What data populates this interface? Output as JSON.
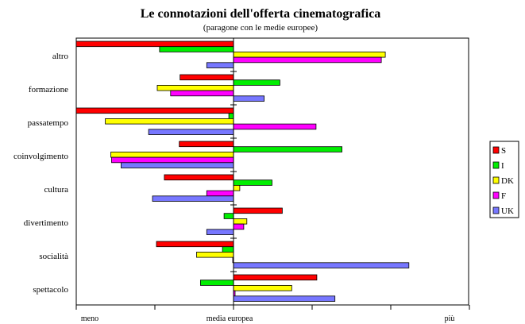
{
  "chart_data": {
    "type": "bar",
    "orientation": "horizontal",
    "title": "Le connotazioni dell'offerta cinematografica",
    "subtitle": "(paragone con le medie europee)",
    "categories": [
      "altro",
      "formazione",
      "passatempo",
      "coinvolgimento",
      "cultura",
      "divertimento",
      "socialità",
      "spettacolo"
    ],
    "xlim": [
      -2,
      3
    ],
    "x_tick_labels": {
      "left": "meno",
      "center": "media europea",
      "right": "più"
    },
    "grid": false,
    "legend_position": "right",
    "series": [
      {
        "name": "S",
        "color": "#ff0000",
        "values": [
          -2.1,
          -0.68,
          -2.1,
          -0.69,
          -0.88,
          0.62,
          -0.98,
          1.06
        ]
      },
      {
        "name": "I",
        "color": "#00ee00",
        "values": [
          -0.94,
          0.59,
          -0.06,
          1.38,
          0.49,
          -0.12,
          -0.14,
          -0.42
        ]
      },
      {
        "name": "DK",
        "color": "#ffff00",
        "values": [
          1.93,
          -0.97,
          -1.63,
          -1.56,
          0.08,
          0.17,
          -0.47,
          0.74
        ]
      },
      {
        "name": "F",
        "color": "#ff00ff",
        "values": [
          1.88,
          -0.8,
          1.05,
          -1.55,
          -0.34,
          0.13,
          -0.01,
          0.02
        ]
      },
      {
        "name": "UK",
        "color": "#7777ff",
        "values": [
          -0.34,
          0.39,
          -1.08,
          -1.43,
          -1.03,
          -0.34,
          2.23,
          1.29
        ]
      }
    ]
  }
}
